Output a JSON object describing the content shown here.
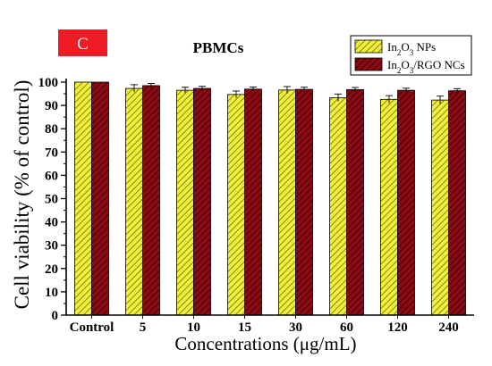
{
  "chart_data": {
    "type": "bar",
    "panel_label": "C",
    "title": "PBMCs",
    "xlabel": "Concentrations (μg/mL)",
    "ylabel": "Cell viability (% of control)",
    "ylim": [
      0,
      100
    ],
    "yticks": [
      0,
      10,
      20,
      30,
      40,
      50,
      60,
      70,
      80,
      90,
      100
    ],
    "categories": [
      "Control",
      "5",
      "10",
      "15",
      "30",
      "60",
      "120",
      "240"
    ],
    "series": [
      {
        "name": "In2O3 NPs",
        "name_parts": [
          "In",
          "2",
          "O",
          "3",
          " NPs"
        ],
        "color": "#f0f03c",
        "hatch_color": "#6b6b00",
        "values": [
          100,
          97.3,
          96.5,
          94.7,
          96.6,
          93.3,
          92.6,
          92.3
        ],
        "errors": [
          0,
          1.6,
          1.3,
          1.5,
          1.5,
          1.6,
          1.6,
          1.7
        ]
      },
      {
        "name": "In2O3/RGO NCs",
        "name_parts": [
          "In",
          "2",
          "O",
          "3",
          "/RGO NCs"
        ],
        "color": "#8b0a14",
        "hatch_color": "#2a0004",
        "values": [
          100,
          98.5,
          97.3,
          97.0,
          96.9,
          96.8,
          96.5,
          96.3
        ],
        "errors": [
          0,
          0.9,
          0.9,
          0.9,
          0.9,
          0.9,
          0.9,
          0.9
        ]
      }
    ],
    "legend_position": "top-right",
    "error_bars": true,
    "grid": false
  }
}
